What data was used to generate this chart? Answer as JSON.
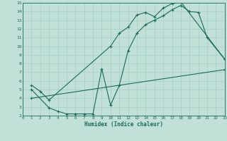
{
  "xlabel": "Humidex (Indice chaleur)",
  "xlim": [
    0,
    23
  ],
  "ylim": [
    2,
    15
  ],
  "xticks": [
    0,
    1,
    2,
    3,
    4,
    5,
    6,
    7,
    8,
    9,
    10,
    11,
    12,
    13,
    14,
    15,
    16,
    17,
    18,
    19,
    20,
    21,
    22,
    23
  ],
  "yticks": [
    2,
    3,
    4,
    5,
    6,
    7,
    8,
    9,
    10,
    11,
    12,
    13,
    14,
    15
  ],
  "bg_color": "#c0e0d8",
  "grid_color": "#a8ccc4",
  "line_color": "#1a6b5a",
  "curve1_x": [
    1,
    2,
    3,
    10,
    11,
    12,
    13,
    14,
    15,
    16,
    17,
    18,
    23
  ],
  "curve1_y": [
    5.5,
    4.8,
    3.8,
    10.0,
    11.5,
    12.2,
    13.6,
    13.9,
    13.4,
    14.4,
    14.9,
    15.1,
    8.5
  ],
  "curve2_x": [
    1,
    3,
    4,
    5,
    6,
    7,
    8,
    9,
    10,
    11,
    12,
    13,
    14,
    15,
    16,
    17,
    18,
    19,
    20,
    21,
    23
  ],
  "curve2_y": [
    5.0,
    2.9,
    2.5,
    2.2,
    2.2,
    2.2,
    2.2,
    7.4,
    3.2,
    5.5,
    9.5,
    11.5,
    12.5,
    13.0,
    13.5,
    14.2,
    14.7,
    14.0,
    13.9,
    11.0,
    8.5
  ],
  "curve3_x": [
    1,
    23
  ],
  "curve3_y": [
    4.0,
    7.3
  ]
}
